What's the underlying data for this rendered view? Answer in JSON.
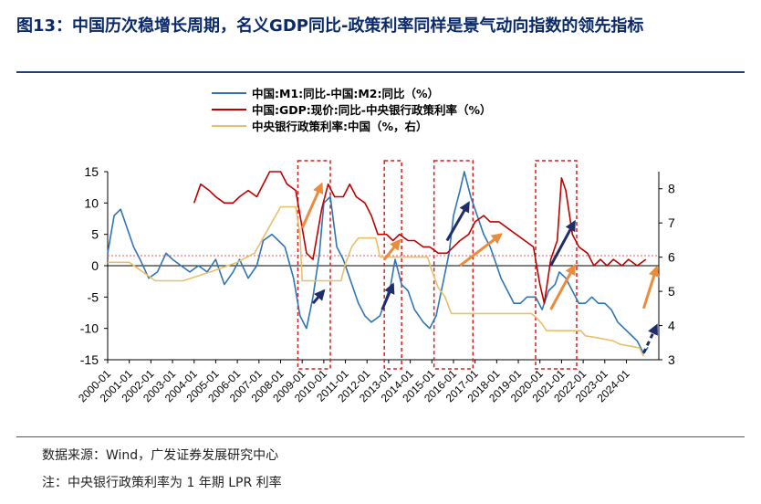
{
  "title": "图13：中国历次稳增长周期，名义GDP同比-政策利率同样是景气动向指数的领先指标",
  "source": "数据来源：Wind，广发证券发展研究中心",
  "footnote": "注：中央银行政策利率为 1 年期 LPR 利率",
  "colors": {
    "m1m2": "#2e75b6",
    "gdp": "#c00000",
    "rate": "#e6c06a",
    "box": "#d42020",
    "arrow_orange": "#ed8b3d",
    "arrow_navy": "#1f2e6b",
    "ref": "#e06060"
  },
  "chart_data": {
    "type": "line",
    "legend": [
      "中国:M1:同比-中国:M2:同比（%）",
      "中国:GDP:现价:同比-中央银行政策利率（%）",
      "中央银行政策利率:中国（%，右）"
    ],
    "legend_position": "top-center",
    "x_ticks": [
      "2000-01",
      "2001-01",
      "2002-01",
      "2003-01",
      "2004-01",
      "2005-01",
      "2006-01",
      "2007-01",
      "2008-01",
      "2009-01",
      "2010-01",
      "2011-01",
      "2012-01",
      "2013-01",
      "2014-01",
      "2015-01",
      "2016-01",
      "2017-01",
      "2018-01",
      "2019-01",
      "2020-01",
      "2021-01",
      "2022-01",
      "2023-01",
      "2024-01"
    ],
    "y_left": {
      "ticks": [
        15,
        10,
        5,
        0,
        -5,
        -10,
        -15
      ],
      "ylim": [
        -15,
        15
      ]
    },
    "y_right": {
      "ticks": [
        8,
        7,
        6,
        5,
        4,
        3
      ],
      "ylim": [
        3,
        8.5
      ]
    },
    "xlim": [
      2000.0,
      2025.5
    ],
    "series": [
      {
        "name": "中国:M1:同比-中国:M2:同比（%）",
        "axis": "left",
        "color": "#2e75b6",
        "points": [
          [
            2000.0,
            2
          ],
          [
            2000.3,
            8
          ],
          [
            2000.6,
            9
          ],
          [
            2000.9,
            6
          ],
          [
            2001.2,
            3
          ],
          [
            2001.5,
            1
          ],
          [
            2001.9,
            -2
          ],
          [
            2002.3,
            -1
          ],
          [
            2002.7,
            2
          ],
          [
            2003.0,
            1
          ],
          [
            2003.4,
            0
          ],
          [
            2003.8,
            -1
          ],
          [
            2004.2,
            0
          ],
          [
            2004.6,
            -1
          ],
          [
            2005.0,
            1
          ],
          [
            2005.4,
            -3
          ],
          [
            2005.8,
            -1
          ],
          [
            2006.1,
            1
          ],
          [
            2006.5,
            -2
          ],
          [
            2006.9,
            0
          ],
          [
            2007.2,
            4
          ],
          [
            2007.6,
            5
          ],
          [
            2007.9,
            4
          ],
          [
            2008.2,
            3
          ],
          [
            2008.6,
            -2
          ],
          [
            2008.9,
            -8
          ],
          [
            2009.2,
            -10
          ],
          [
            2009.5,
            -5
          ],
          [
            2009.8,
            2
          ],
          [
            2010.0,
            10
          ],
          [
            2010.3,
            11
          ],
          [
            2010.6,
            3
          ],
          [
            2010.9,
            1
          ],
          [
            2011.2,
            -2
          ],
          [
            2011.6,
            -6
          ],
          [
            2011.9,
            -8
          ],
          [
            2012.2,
            -9
          ],
          [
            2012.6,
            -8
          ],
          [
            2012.9,
            -5
          ],
          [
            2013.1,
            -3
          ],
          [
            2013.3,
            1
          ],
          [
            2013.6,
            -3
          ],
          [
            2013.9,
            -4
          ],
          [
            2014.2,
            -7
          ],
          [
            2014.6,
            -9
          ],
          [
            2014.9,
            -10
          ],
          [
            2015.2,
            -8
          ],
          [
            2015.5,
            -3
          ],
          [
            2015.8,
            2
          ],
          [
            2016.0,
            8
          ],
          [
            2016.3,
            12
          ],
          [
            2016.5,
            15
          ],
          [
            2016.8,
            11
          ],
          [
            2017.1,
            8
          ],
          [
            2017.4,
            5
          ],
          [
            2017.7,
            3
          ],
          [
            2017.9,
            1
          ],
          [
            2018.2,
            -2
          ],
          [
            2018.5,
            -4
          ],
          [
            2018.8,
            -6
          ],
          [
            2019.1,
            -6
          ],
          [
            2019.4,
            -5
          ],
          [
            2019.8,
            -5
          ],
          [
            2020.1,
            -7
          ],
          [
            2020.4,
            -4
          ],
          [
            2020.7,
            -3
          ],
          [
            2020.9,
            -1
          ],
          [
            2021.2,
            -2
          ],
          [
            2021.5,
            -4
          ],
          [
            2021.8,
            -6
          ],
          [
            2022.1,
            -6
          ],
          [
            2022.4,
            -5
          ],
          [
            2022.7,
            -6
          ],
          [
            2023.0,
            -6
          ],
          [
            2023.3,
            -7
          ],
          [
            2023.6,
            -9
          ],
          [
            2023.9,
            -10
          ],
          [
            2024.2,
            -11
          ],
          [
            2024.5,
            -12
          ],
          [
            2024.8,
            -14
          ],
          [
            2025.0,
            -13
          ]
        ]
      },
      {
        "name": "中国:GDP:现价:同比-中央银行政策利率（%）",
        "axis": "left",
        "color": "#c00000",
        "points": [
          [
            2004.0,
            10
          ],
          [
            2004.3,
            13
          ],
          [
            2004.7,
            12
          ],
          [
            2005.0,
            11
          ],
          [
            2005.4,
            10
          ],
          [
            2005.8,
            10
          ],
          [
            2006.1,
            11
          ],
          [
            2006.5,
            12
          ],
          [
            2006.9,
            11
          ],
          [
            2007.2,
            13
          ],
          [
            2007.5,
            15
          ],
          [
            2008.0,
            15
          ],
          [
            2008.3,
            13
          ],
          [
            2008.7,
            12
          ],
          [
            2009.0,
            6
          ],
          [
            2009.2,
            2
          ],
          [
            2009.5,
            1
          ],
          [
            2009.9,
            9
          ],
          [
            2010.2,
            13
          ],
          [
            2010.5,
            11
          ],
          [
            2010.9,
            11
          ],
          [
            2011.2,
            13
          ],
          [
            2011.5,
            11
          ],
          [
            2011.9,
            10
          ],
          [
            2012.2,
            8
          ],
          [
            2012.5,
            5
          ],
          [
            2012.9,
            5
          ],
          [
            2013.2,
            4
          ],
          [
            2013.5,
            5
          ],
          [
            2013.9,
            4
          ],
          [
            2014.2,
            4
          ],
          [
            2014.6,
            3
          ],
          [
            2014.9,
            3
          ],
          [
            2015.3,
            2
          ],
          [
            2015.7,
            2
          ],
          [
            2016.0,
            3
          ],
          [
            2016.3,
            4
          ],
          [
            2016.7,
            5
          ],
          [
            2017.0,
            7
          ],
          [
            2017.4,
            8
          ],
          [
            2017.7,
            7
          ],
          [
            2018.1,
            7
          ],
          [
            2018.5,
            6
          ],
          [
            2018.9,
            5
          ],
          [
            2019.3,
            4
          ],
          [
            2019.7,
            3
          ],
          [
            2020.0,
            -3
          ],
          [
            2020.2,
            -6
          ],
          [
            2020.5,
            1
          ],
          [
            2020.8,
            4
          ],
          [
            2021.0,
            14
          ],
          [
            2021.2,
            12
          ],
          [
            2021.5,
            5
          ],
          [
            2021.8,
            3
          ],
          [
            2022.2,
            2
          ],
          [
            2022.5,
            0
          ],
          [
            2022.8,
            1
          ],
          [
            2023.1,
            0
          ],
          [
            2023.4,
            1
          ],
          [
            2023.8,
            0
          ],
          [
            2024.1,
            1
          ],
          [
            2024.5,
            0
          ],
          [
            2024.9,
            1
          ]
        ]
      },
      {
        "name": "中央银行政策利率:中国（%，右）",
        "axis": "right",
        "color": "#e6c06a",
        "points": [
          [
            2000.0,
            5.85
          ],
          [
            2001.0,
            5.85
          ],
          [
            2002.2,
            5.31
          ],
          [
            2003.5,
            5.31
          ],
          [
            2004.8,
            5.58
          ],
          [
            2006.0,
            5.85
          ],
          [
            2006.8,
            6.12
          ],
          [
            2007.2,
            6.57
          ],
          [
            2007.6,
            7.02
          ],
          [
            2008.0,
            7.47
          ],
          [
            2008.7,
            7.47
          ],
          [
            2008.9,
            6.66
          ],
          [
            2009.0,
            5.31
          ],
          [
            2010.8,
            5.31
          ],
          [
            2011.0,
            5.81
          ],
          [
            2011.3,
            6.31
          ],
          [
            2011.6,
            6.56
          ],
          [
            2012.4,
            6.56
          ],
          [
            2012.5,
            6.31
          ],
          [
            2012.6,
            6.0
          ],
          [
            2014.8,
            6.0
          ],
          [
            2015.0,
            5.6
          ],
          [
            2015.3,
            5.1
          ],
          [
            2015.6,
            4.85
          ],
          [
            2015.9,
            4.35
          ],
          [
            2019.6,
            4.35
          ],
          [
            2019.8,
            4.25
          ],
          [
            2020.1,
            4.05
          ],
          [
            2020.3,
            3.85
          ],
          [
            2021.9,
            3.85
          ],
          [
            2022.1,
            3.7
          ],
          [
            2022.6,
            3.65
          ],
          [
            2023.4,
            3.55
          ],
          [
            2023.7,
            3.45
          ],
          [
            2024.6,
            3.35
          ],
          [
            2024.8,
            3.1
          ]
        ]
      }
    ],
    "reference_line": {
      "axis": "left",
      "y": 1.6,
      "style": "dotted"
    },
    "highlight_periods": [
      [
        2008.8,
        2010.3
      ],
      [
        2012.8,
        2013.6
      ],
      [
        2015.1,
        2016.9
      ],
      [
        2019.8,
        2021.7
      ]
    ],
    "arrows": [
      {
        "color": "orange",
        "from": [
          2009.0,
          6
        ],
        "to": [
          2009.9,
          13
        ]
      },
      {
        "color": "navy",
        "from": [
          2009.5,
          -6
        ],
        "to": [
          2010.0,
          -4
        ]
      },
      {
        "color": "orange",
        "from": [
          2012.8,
          1
        ],
        "to": [
          2013.5,
          4
        ]
      },
      {
        "color": "navy",
        "from": [
          2012.7,
          -7
        ],
        "to": [
          2013.2,
          -3
        ]
      },
      {
        "color": "orange",
        "from": [
          2016.3,
          0
        ],
        "to": [
          2018.2,
          5
        ]
      },
      {
        "color": "navy",
        "from": [
          2015.7,
          4
        ],
        "to": [
          2016.7,
          10
        ]
      },
      {
        "color": "orange",
        "from": [
          2020.5,
          -7
        ],
        "to": [
          2021.6,
          0
        ]
      },
      {
        "color": "navy",
        "from": [
          2020.5,
          0
        ],
        "to": [
          2021.6,
          7
        ]
      },
      {
        "color": "orange",
        "from": [
          2024.8,
          4.5
        ],
        "to": [
          2025.4,
          5.7
        ],
        "axis": "right"
      },
      {
        "color": "navy",
        "from": [
          2024.8,
          3.2
        ],
        "to": [
          2025.4,
          4.0
        ],
        "axis": "right",
        "dashed": true
      }
    ]
  }
}
